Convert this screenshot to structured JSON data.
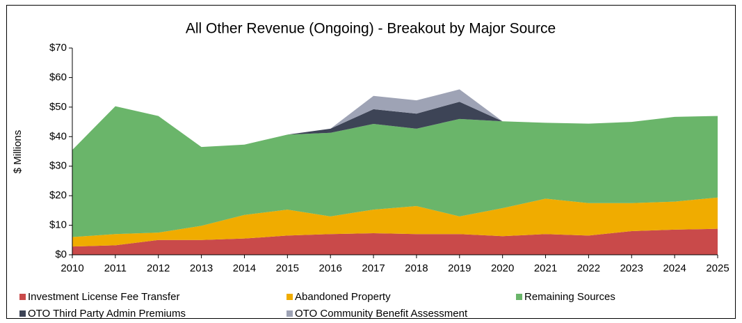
{
  "chart_data": {
    "type": "stacked_area",
    "title": "All Other Revenue (Ongoing) - Breakout by Major Source",
    "y_label": "$ Millions",
    "categories": [
      "2010",
      "2011",
      "2012",
      "2013",
      "2014",
      "2015",
      "2016",
      "2017",
      "2018",
      "2019",
      "2020",
      "2021",
      "2022",
      "2023",
      "2024",
      "2025"
    ],
    "series": [
      {
        "name": "Investment License Fee Transfer",
        "color": "#c94a4a",
        "values": [
          2.8,
          3.2,
          5.0,
          5.0,
          5.5,
          6.5,
          7.0,
          7.3,
          7.0,
          7.0,
          6.3,
          7.0,
          6.5,
          8.0,
          8.5,
          8.8
        ]
      },
      {
        "name": "Abandoned Property",
        "color": "#f0ac00",
        "values": [
          3.2,
          3.8,
          2.5,
          4.8,
          8.0,
          8.8,
          6.0,
          8.0,
          9.5,
          6.0,
          9.5,
          12.0,
          11.0,
          9.5,
          9.5,
          10.6
        ]
      },
      {
        "name": "Remaining Sources",
        "color": "#6ab56a",
        "values": [
          29.5,
          43.3,
          39.5,
          26.7,
          23.8,
          25.4,
          28.3,
          29.0,
          26.2,
          33.0,
          29.4,
          25.7,
          26.9,
          27.5,
          28.7,
          27.6
        ]
      },
      {
        "name": "OTO Third Party Admin Premiums",
        "color": "#3d4456",
        "values": [
          0,
          0,
          0,
          0,
          0,
          0,
          1.4,
          5.0,
          5.1,
          5.8,
          0,
          0,
          0,
          0,
          0,
          0
        ]
      },
      {
        "name": "OTO Community Benefit Assessment",
        "color": "#9ea3b5",
        "values": [
          0,
          0,
          0,
          0,
          0,
          0,
          0,
          4.5,
          4.5,
          4.2,
          0,
          0,
          0,
          0,
          0,
          0
        ]
      }
    ],
    "ylim": [
      0,
      70
    ],
    "yticks": [
      {
        "value": 0,
        "label": "$0"
      },
      {
        "value": 10,
        "label": "$10"
      },
      {
        "value": 20,
        "label": "$20"
      },
      {
        "value": 30,
        "label": "$30"
      },
      {
        "value": 40,
        "label": "$40"
      },
      {
        "value": 50,
        "label": "$50"
      },
      {
        "value": 60,
        "label": "$60"
      },
      {
        "value": 70,
        "label": "$70"
      }
    ],
    "legend": "bottom"
  }
}
